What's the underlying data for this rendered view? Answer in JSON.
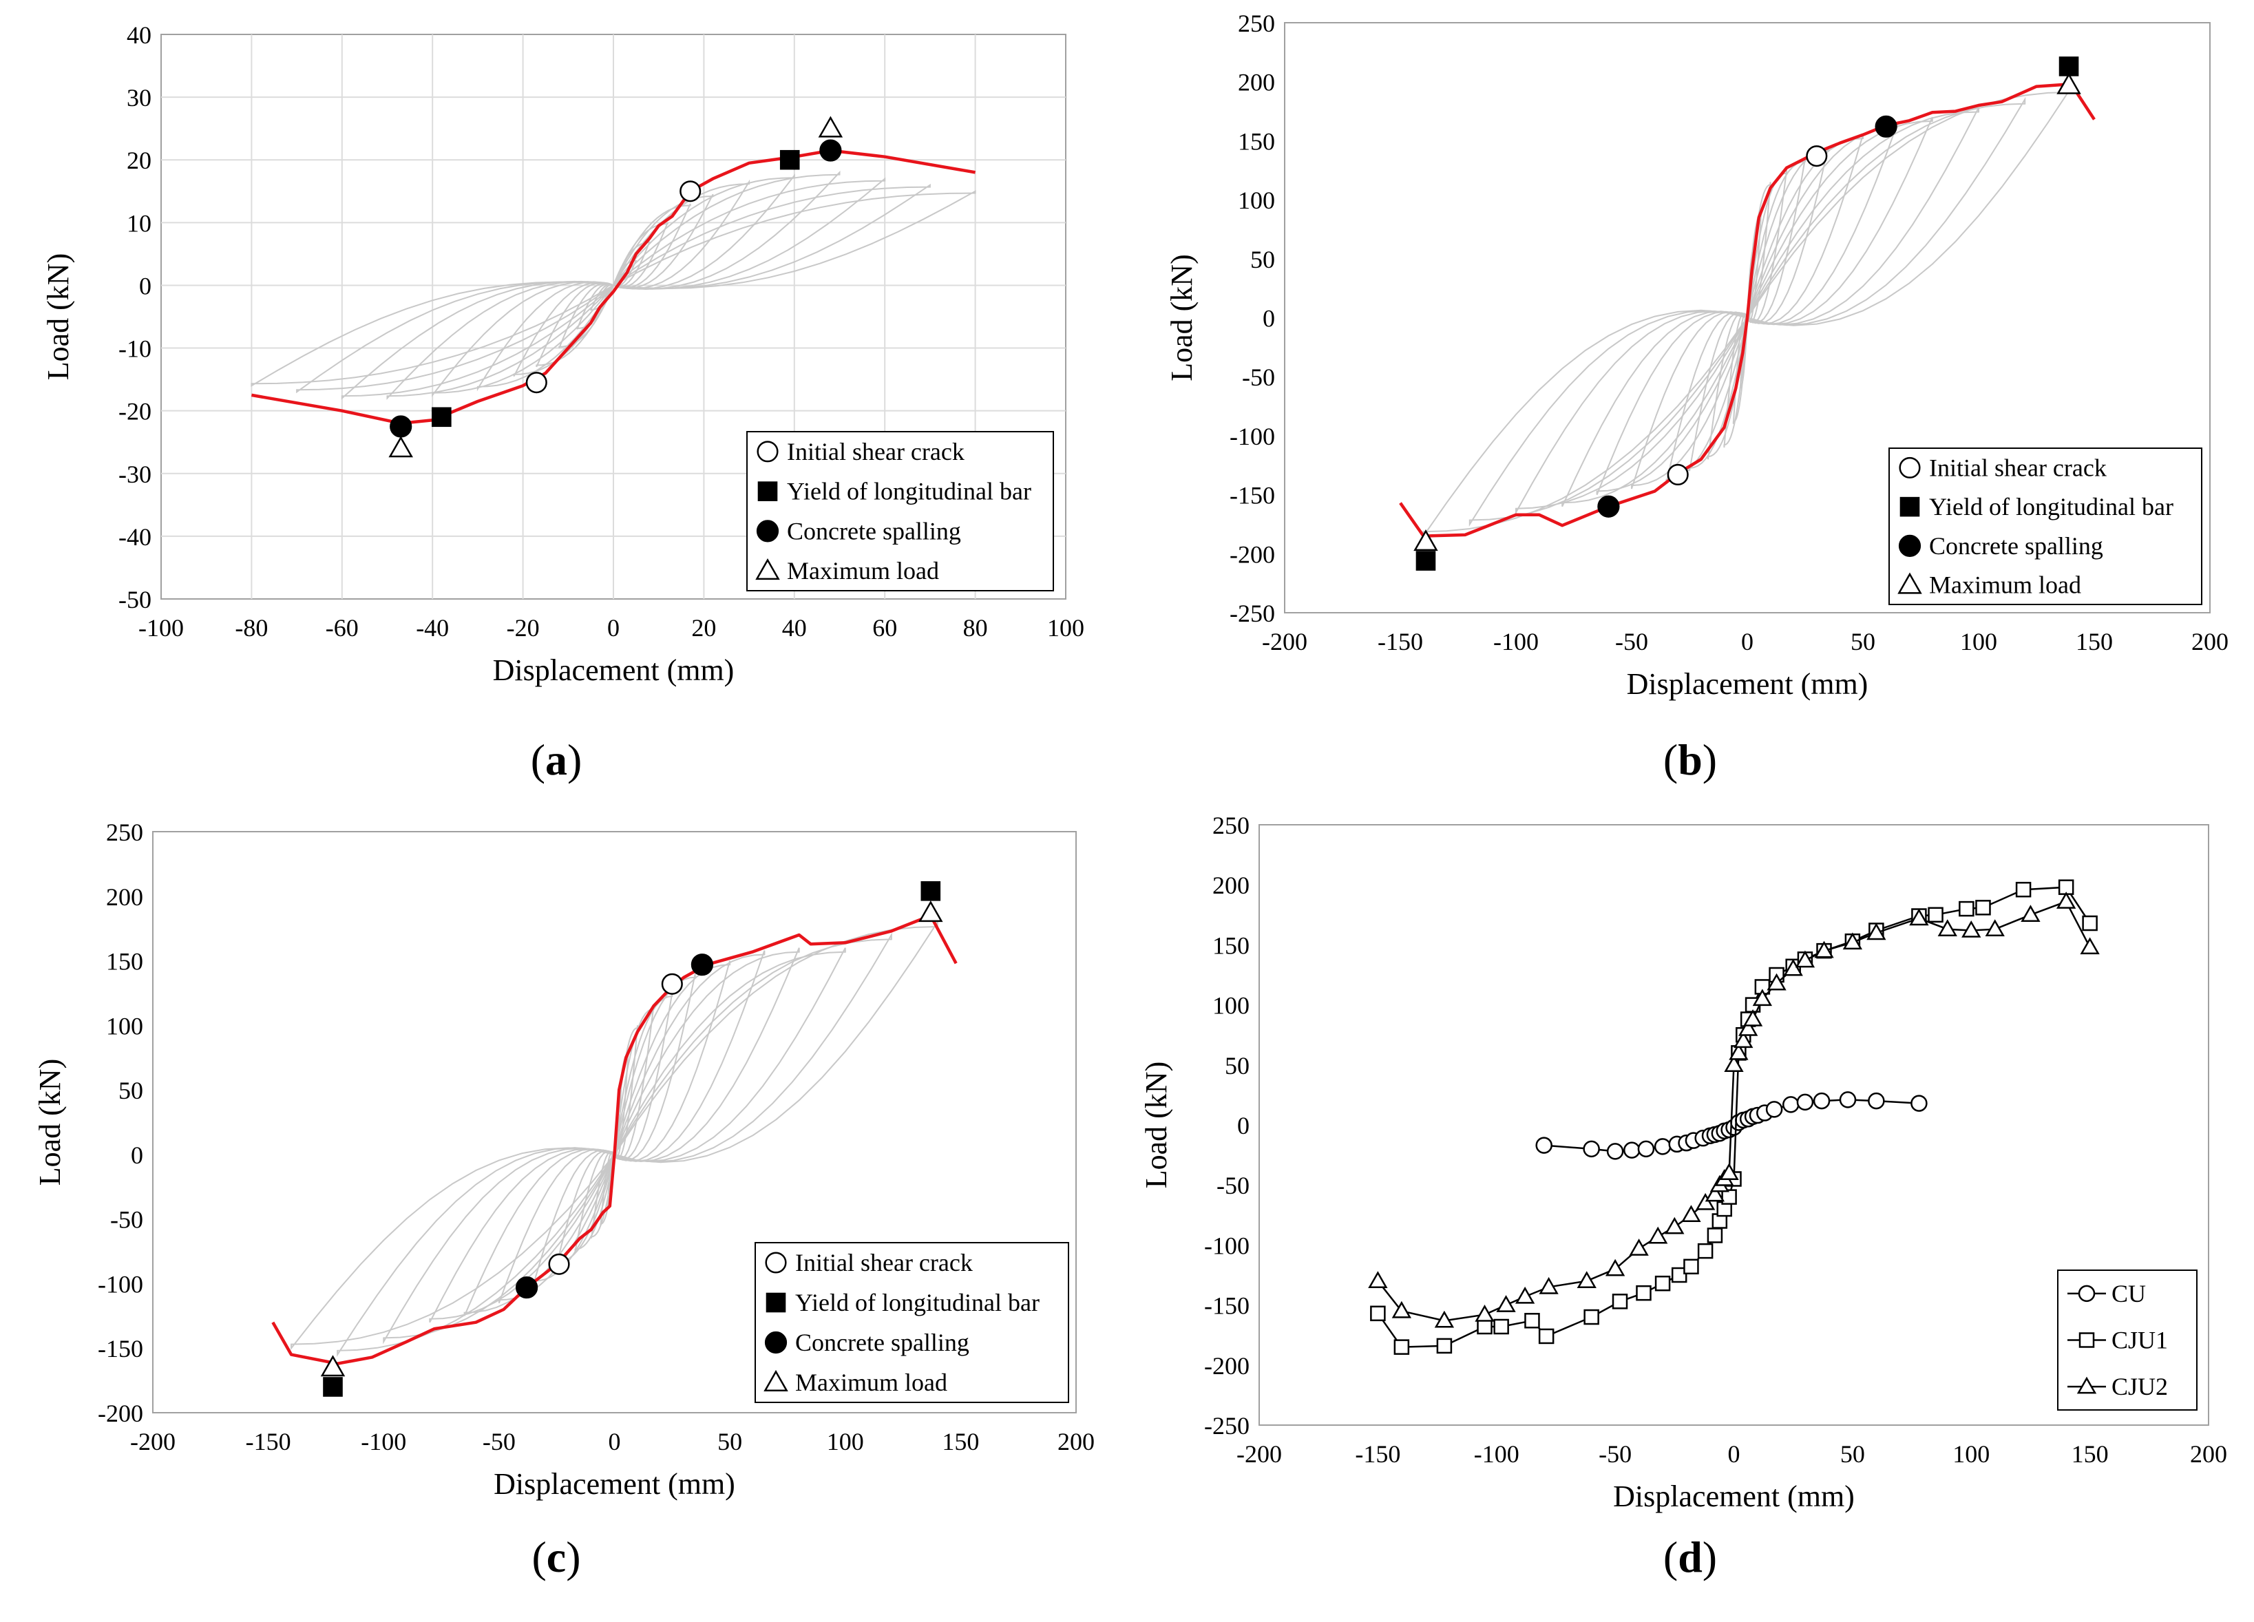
{
  "figure": {
    "panels": [
      "a",
      "b",
      "c",
      "d"
    ]
  },
  "chart_data": [
    {
      "id": "a",
      "panel_label": "(a)",
      "panel_letter": "a",
      "type": "line",
      "xlabel": "Displacement (mm)",
      "ylabel": "Load (kN)",
      "xlim": [
        -100,
        100
      ],
      "ylim": [
        -50,
        40
      ],
      "xticks": [
        -100,
        -80,
        -60,
        -40,
        -20,
        0,
        20,
        40,
        60,
        80,
        100
      ],
      "yticks": [
        -50,
        -40,
        -30,
        -20,
        -10,
        0,
        10,
        20,
        30,
        40
      ],
      "grid": true,
      "legend_position": "bottom-right",
      "hysteresis_peaks_pos": [
        [
          3,
          2
        ],
        [
          5,
          4
        ],
        [
          8,
          7
        ],
        [
          12,
          10
        ],
        [
          17,
          13
        ],
        [
          22,
          14.5
        ],
        [
          30,
          16.5
        ],
        [
          40,
          17.5
        ],
        [
          50,
          18
        ],
        [
          60,
          17
        ],
        [
          70,
          16
        ],
        [
          80,
          15
        ]
      ],
      "hysteresis_peaks_neg": [
        [
          -3,
          -2
        ],
        [
          -5,
          -4
        ],
        [
          -8,
          -7
        ],
        [
          -12,
          -10
        ],
        [
          -17,
          -13
        ],
        [
          -22,
          -14.5
        ],
        [
          -30,
          -16.5
        ],
        [
          -40,
          -17.5
        ],
        [
          -50,
          -18
        ],
        [
          -60,
          -18
        ],
        [
          -70,
          -17
        ],
        [
          -80,
          -16
        ]
      ],
      "envelope": {
        "color": "#e8141b",
        "x": [
          -80,
          -60,
          -47,
          -40,
          -30,
          -20,
          -15,
          -10,
          -5,
          -3,
          0,
          3,
          5,
          8,
          10,
          13,
          17,
          22,
          30,
          40,
          48,
          60,
          80
        ],
        "y": [
          -17.5,
          -20,
          -22,
          -21.5,
          -18.5,
          -16,
          -14,
          -10,
          -6,
          -3.5,
          -1,
          2,
          5,
          7.5,
          9.5,
          11,
          15,
          17,
          19.5,
          20.5,
          21.5,
          20.5,
          18
        ]
      },
      "markers": [
        {
          "type": "initial_shear_crack",
          "x": 17,
          "y": 15
        },
        {
          "type": "initial_shear_crack",
          "x": -17,
          "y": -15.5
        },
        {
          "type": "yield_longitudinal_bar",
          "x": 39,
          "y": 20
        },
        {
          "type": "yield_longitudinal_bar",
          "x": -38,
          "y": -21
        },
        {
          "type": "concrete_spalling",
          "x": 48,
          "y": 21.5
        },
        {
          "type": "concrete_spalling",
          "x": -47,
          "y": -22.5
        },
        {
          "type": "maximum_load",
          "x": 48,
          "y": 25
        },
        {
          "type": "maximum_load",
          "x": -47,
          "y": -26
        }
      ],
      "legend": [
        {
          "marker": "initial_shear_crack",
          "label": "Initial shear crack"
        },
        {
          "marker": "yield_longitudinal_bar",
          "label": "Yield of longitudinal bar"
        },
        {
          "marker": "concrete_spalling",
          "label": "Concrete spalling"
        },
        {
          "marker": "maximum_load",
          "label": "Maximum load"
        }
      ]
    },
    {
      "id": "b",
      "panel_label": "(b)",
      "panel_letter": "b",
      "type": "line",
      "xlabel": "Displacement (mm)",
      "ylabel": "Load (kN)",
      "xlim": [
        -200,
        200
      ],
      "ylim": [
        -250,
        250
      ],
      "xticks": [
        -200,
        -150,
        -100,
        -50,
        0,
        50,
        100,
        150,
        200
      ],
      "yticks": [
        -250,
        -200,
        -150,
        -100,
        -50,
        0,
        50,
        100,
        150,
        200,
        250
      ],
      "grid": false,
      "legend_position": "bottom-right",
      "hysteresis_peaks_pos": [
        [
          3,
          60
        ],
        [
          6,
          90
        ],
        [
          10,
          115
        ],
        [
          17,
          125
        ],
        [
          25,
          135
        ],
        [
          35,
          145
        ],
        [
          50,
          155
        ],
        [
          65,
          165
        ],
        [
          80,
          170
        ],
        [
          100,
          178
        ],
        [
          120,
          185
        ],
        [
          140,
          195
        ]
      ],
      "hysteresis_peaks_neg": [
        [
          -3,
          -60
        ],
        [
          -6,
          -90
        ],
        [
          -10,
          -110
        ],
        [
          -17,
          -120
        ],
        [
          -25,
          -130
        ],
        [
          -35,
          -140
        ],
        [
          -50,
          -145
        ],
        [
          -65,
          -150
        ],
        [
          -80,
          -160
        ],
        [
          -100,
          -165
        ],
        [
          -120,
          -175
        ],
        [
          -140,
          -185
        ]
      ],
      "envelope": {
        "color": "#e8141b",
        "x": [
          -150,
          -140,
          -122,
          -100,
          -90,
          -80,
          -60,
          -40,
          -30,
          -20,
          -10,
          -5,
          -2,
          0,
          2,
          5,
          10,
          17,
          25,
          30,
          40,
          50,
          60,
          70,
          80,
          90,
          100,
          110,
          125,
          140,
          150
        ],
        "y": [
          -157,
          -185,
          -184,
          -167,
          -167,
          -176,
          -160,
          -147,
          -132,
          -120,
          -93,
          -60,
          -30,
          0,
          40,
          85,
          110,
          127,
          135,
          140,
          148,
          155,
          163,
          167,
          174,
          175,
          180,
          183,
          196,
          198,
          168
        ]
      },
      "markers": [
        {
          "type": "initial_shear_crack",
          "x": 30,
          "y": 137
        },
        {
          "type": "initial_shear_crack",
          "x": -30,
          "y": -133
        },
        {
          "type": "yield_longitudinal_bar",
          "x": 139,
          "y": 213
        },
        {
          "type": "yield_longitudinal_bar",
          "x": -139,
          "y": -206
        },
        {
          "type": "concrete_spalling",
          "x": 60,
          "y": 162
        },
        {
          "type": "concrete_spalling",
          "x": -60,
          "y": -160
        },
        {
          "type": "maximum_load",
          "x": 139,
          "y": 197
        },
        {
          "type": "maximum_load",
          "x": -139,
          "y": -190
        }
      ],
      "legend": [
        {
          "marker": "initial_shear_crack",
          "label": "Initial shear crack"
        },
        {
          "marker": "yield_longitudinal_bar",
          "label": "Yield of longitudinal bar"
        },
        {
          "marker": "concrete_spalling",
          "label": "Concrete spalling"
        },
        {
          "marker": "maximum_load",
          "label": "Maximum load"
        }
      ]
    },
    {
      "id": "c",
      "panel_label": "(c)",
      "panel_letter": "c",
      "type": "line",
      "xlabel": "Displacement (mm)",
      "ylabel": "Load (kN)",
      "xlim": [
        -200,
        200
      ],
      "ylim": [
        -200,
        250
      ],
      "xticks": [
        -200,
        -150,
        -100,
        -50,
        0,
        50,
        100,
        150,
        200
      ],
      "yticks": [
        -200,
        -150,
        -100,
        -50,
        0,
        50,
        100,
        150,
        200,
        250
      ],
      "grid": false,
      "legend_position": "bottom-right",
      "hysteresis_peaks_pos": [
        [
          3,
          55
        ],
        [
          6,
          80
        ],
        [
          10,
          100
        ],
        [
          17,
          115
        ],
        [
          25,
          125
        ],
        [
          35,
          140
        ],
        [
          50,
          150
        ],
        [
          65,
          158
        ],
        [
          80,
          160
        ],
        [
          100,
          160
        ],
        [
          120,
          170
        ],
        [
          140,
          180
        ]
      ],
      "hysteresis_peaks_neg": [
        [
          -3,
          -40
        ],
        [
          -6,
          -55
        ],
        [
          -10,
          -65
        ],
        [
          -17,
          -75
        ],
        [
          -25,
          -85
        ],
        [
          -35,
          -100
        ],
        [
          -50,
          -115
        ],
        [
          -65,
          -125
        ],
        [
          -80,
          -130
        ],
        [
          -100,
          -145
        ],
        [
          -120,
          -155
        ],
        [
          -140,
          -150
        ]
      ],
      "envelope": {
        "color": "#e8141b",
        "x": [
          -148,
          -140,
          -120,
          -105,
          -90,
          -78,
          -60,
          -48,
          -38,
          -30,
          -25,
          -20,
          -15,
          -10,
          -5,
          -2,
          0,
          2,
          5,
          10,
          17,
          25,
          30,
          40,
          50,
          60,
          80,
          85,
          100,
          120,
          137,
          148
        ],
        "y": [
          -130,
          -155,
          -162,
          -157,
          -145,
          -135,
          -130,
          -120,
          -103,
          -92,
          -85,
          -75,
          -65,
          -58,
          -45,
          -40,
          0,
          50,
          75,
          95,
          115,
          130,
          137,
          147,
          152,
          157,
          170,
          163,
          164,
          173,
          185,
          148
        ]
      },
      "markers": [
        {
          "type": "initial_shear_crack",
          "x": 25,
          "y": 132
        },
        {
          "type": "initial_shear_crack",
          "x": -24,
          "y": -85
        },
        {
          "type": "yield_longitudinal_bar",
          "x": 137,
          "y": 204
        },
        {
          "type": "yield_longitudinal_bar",
          "x": -122,
          "y": -180
        },
        {
          "type": "concrete_spalling",
          "x": 38,
          "y": 147
        },
        {
          "type": "concrete_spalling",
          "x": -38,
          "y": -103
        },
        {
          "type": "maximum_load",
          "x": 137,
          "y": 187
        },
        {
          "type": "maximum_load",
          "x": -122,
          "y": -165
        }
      ],
      "legend": [
        {
          "marker": "initial_shear_crack",
          "label": "Initial shear crack"
        },
        {
          "marker": "yield_longitudinal_bar",
          "label": "Yield of longitudinal bar"
        },
        {
          "marker": "concrete_spalling",
          "label": "Concrete spalling"
        },
        {
          "marker": "maximum_load",
          "label": "Maximum load"
        }
      ]
    },
    {
      "id": "d",
      "panel_label": "(d)",
      "panel_letter": "d",
      "type": "line",
      "xlabel": "Displacement (mm)",
      "ylabel": "Load (kN)",
      "xlim": [
        -200,
        200
      ],
      "ylim": [
        -250,
        250
      ],
      "xticks": [
        -200,
        -150,
        -100,
        -50,
        0,
        50,
        100,
        150,
        200
      ],
      "yticks": [
        -250,
        -200,
        -150,
        -100,
        -50,
        0,
        50,
        100,
        150,
        200,
        250
      ],
      "grid": false,
      "legend_position": "bottom-right",
      "series": [
        {
          "name": "CU",
          "marker": "circle",
          "x": [
            -80,
            -60,
            -50,
            -43,
            -37,
            -30,
            -24,
            -20,
            -17,
            -13,
            -10,
            -8,
            -6,
            -4,
            -2,
            0,
            2,
            4,
            6,
            8,
            10,
            13,
            17,
            24,
            30,
            37,
            48,
            60,
            78
          ],
          "y": [
            -17,
            -20,
            -22,
            -21,
            -20,
            -18,
            -16,
            -15,
            -13,
            -11,
            -9,
            -8,
            -7,
            -5,
            -4,
            -2,
            2,
            4,
            5,
            7,
            8,
            10,
            13,
            17,
            19,
            20,
            21,
            20,
            18
          ]
        },
        {
          "name": "CJU1",
          "marker": "square",
          "x": [
            -150,
            -140,
            -122,
            -105,
            -98,
            -85,
            -79,
            -60,
            -48,
            -38,
            -30,
            -23,
            -18,
            -12,
            -8,
            -6,
            -4,
            -2,
            0,
            2,
            4,
            6,
            8,
            12,
            18,
            25,
            30,
            38,
            50,
            60,
            78,
            85,
            98,
            105,
            122,
            140,
            150
          ],
          "y": [
            -157,
            -185,
            -184,
            -168,
            -168,
            -163,
            -176,
            -160,
            -147,
            -140,
            -132,
            -125,
            -118,
            -105,
            -92,
            -80,
            -70,
            -60,
            -45,
            60,
            75,
            88,
            100,
            115,
            125,
            132,
            138,
            145,
            153,
            162,
            174,
            175,
            180,
            181,
            196,
            198,
            168
          ]
        },
        {
          "name": "CJU2",
          "marker": "triangle",
          "x": [
            -150,
            -140,
            -122,
            -105,
            -96,
            -88,
            -78,
            -62,
            -50,
            -40,
            -32,
            -25,
            -18,
            -12,
            -8,
            -6,
            -4,
            -2,
            0,
            2,
            4,
            6,
            8,
            12,
            18,
            25,
            30,
            38,
            50,
            60,
            78,
            90,
            100,
            110,
            125,
            140,
            150
          ],
          "y": [
            -130,
            -155,
            -163,
            -158,
            -150,
            -143,
            -135,
            -130,
            -120,
            -103,
            -93,
            -85,
            -75,
            -65,
            -58,
            -50,
            -45,
            -40,
            50,
            60,
            70,
            80,
            88,
            105,
            118,
            130,
            137,
            145,
            152,
            160,
            172,
            163,
            162,
            163,
            175,
            186,
            148
          ]
        }
      ],
      "legend": [
        {
          "marker": "circle",
          "label": "CU"
        },
        {
          "marker": "square",
          "label": "CJU1"
        },
        {
          "marker": "triangle",
          "label": "CJU2"
        }
      ]
    }
  ]
}
